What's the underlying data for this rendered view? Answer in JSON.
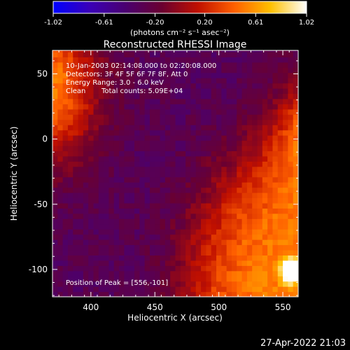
{
  "colorbar": {
    "ticks": [
      "-1.02",
      "-0.61",
      "-0.20",
      "0.20",
      "0.61",
      "1.02"
    ],
    "units_label": "(photons cm⁻² s⁻¹ asec⁻²)",
    "stops": [
      "#0000ff",
      "#3a00b8",
      "#4a0070",
      "#6a0030",
      "#c01000",
      "#ff6000",
      "#ffc000",
      "#ffffff"
    ]
  },
  "chart_data": {
    "type": "heatmap",
    "title": "Reconstructed RHESSI Image",
    "xlabel": "Heliocentric X (arcsec)",
    "ylabel": "Heliocentric Y (arcsec)",
    "xlim": [
      370,
      562
    ],
    "ylim": [
      -121,
      68
    ],
    "xticks": [
      400,
      450,
      500,
      550
    ],
    "yticks": [
      50,
      0,
      -50,
      -100
    ],
    "zlim": [
      -1.02,
      1.02
    ],
    "peak": {
      "x": 556,
      "y": -101
    },
    "annotations": {
      "time": "10-Jan-2003 02:14:08.000 to 02:20:08.000",
      "detectors": "Detectors: 3F 4F 5F 6F 7F 8F, Att 0",
      "energy": "Energy Range: 3.0 - 6.0 keV",
      "algorithm": "Clean",
      "counts": "Total counts: 5.09E+04",
      "peak_text": "Position of Peak = [556,-101]"
    }
  },
  "footer": {
    "timestamp": "27-Apr-2022 21:03"
  }
}
